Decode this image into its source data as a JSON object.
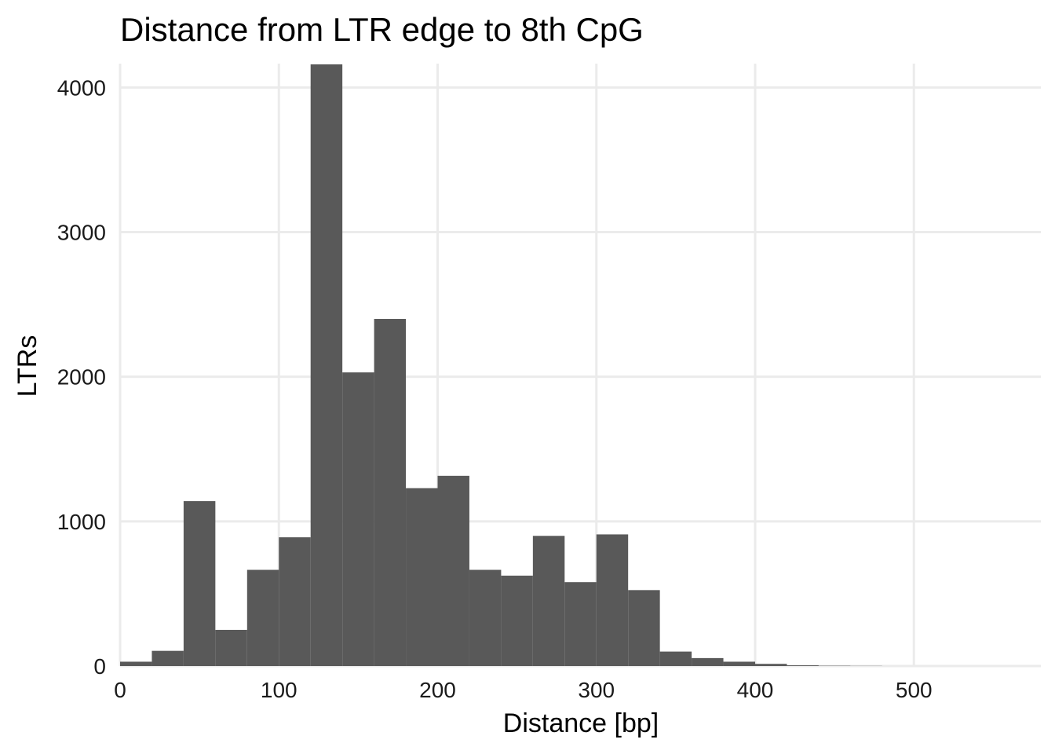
{
  "chart_data": {
    "type": "bar",
    "title": "Distance from LTR edge to 8th CpG",
    "xlabel": "Distance [bp]",
    "ylabel": "LTRs",
    "xlim": [
      0,
      580
    ],
    "ylim": [
      0,
      4160
    ],
    "x_ticks": [
      0,
      100,
      200,
      300,
      400,
      500
    ],
    "y_ticks": [
      0,
      1000,
      2000,
      3000,
      4000
    ],
    "grid": true,
    "bar_color": "#595959",
    "bin_width": 20,
    "bin_starts": [
      0,
      20,
      40,
      60,
      80,
      100,
      120,
      140,
      160,
      180,
      200,
      220,
      240,
      260,
      280,
      300,
      320,
      340,
      360,
      380,
      400,
      420,
      440,
      460,
      480,
      500,
      520,
      540
    ],
    "values": [
      30,
      105,
      1140,
      250,
      665,
      890,
      4160,
      2030,
      2400,
      1230,
      1315,
      665,
      625,
      900,
      580,
      910,
      525,
      100,
      55,
      30,
      15,
      5,
      2,
      1,
      0,
      0,
      0,
      0
    ]
  }
}
